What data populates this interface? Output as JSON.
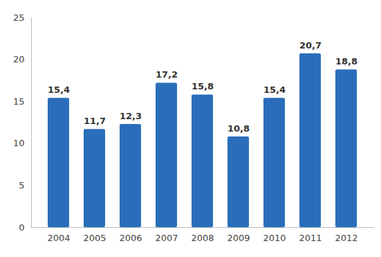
{
  "chart_data": {
    "type": "bar",
    "categories": [
      "2004",
      "2005",
      "2006",
      "2007",
      "2008",
      "2009",
      "2010",
      "2011",
      "2012"
    ],
    "values": [
      15.4,
      11.7,
      12.3,
      17.2,
      15.8,
      10.8,
      15.4,
      20.7,
      18.8
    ],
    "value_labels": [
      "15,4",
      "11,7",
      "12,3",
      "17,2",
      "15,8",
      "10,8",
      "15,4",
      "20,7",
      "18,8"
    ],
    "color": "#2a6ebb",
    "ylim": [
      0,
      25
    ],
    "yticks": [
      0,
      5,
      10,
      15,
      20,
      25
    ],
    "grid": false,
    "data_labels": true
  }
}
